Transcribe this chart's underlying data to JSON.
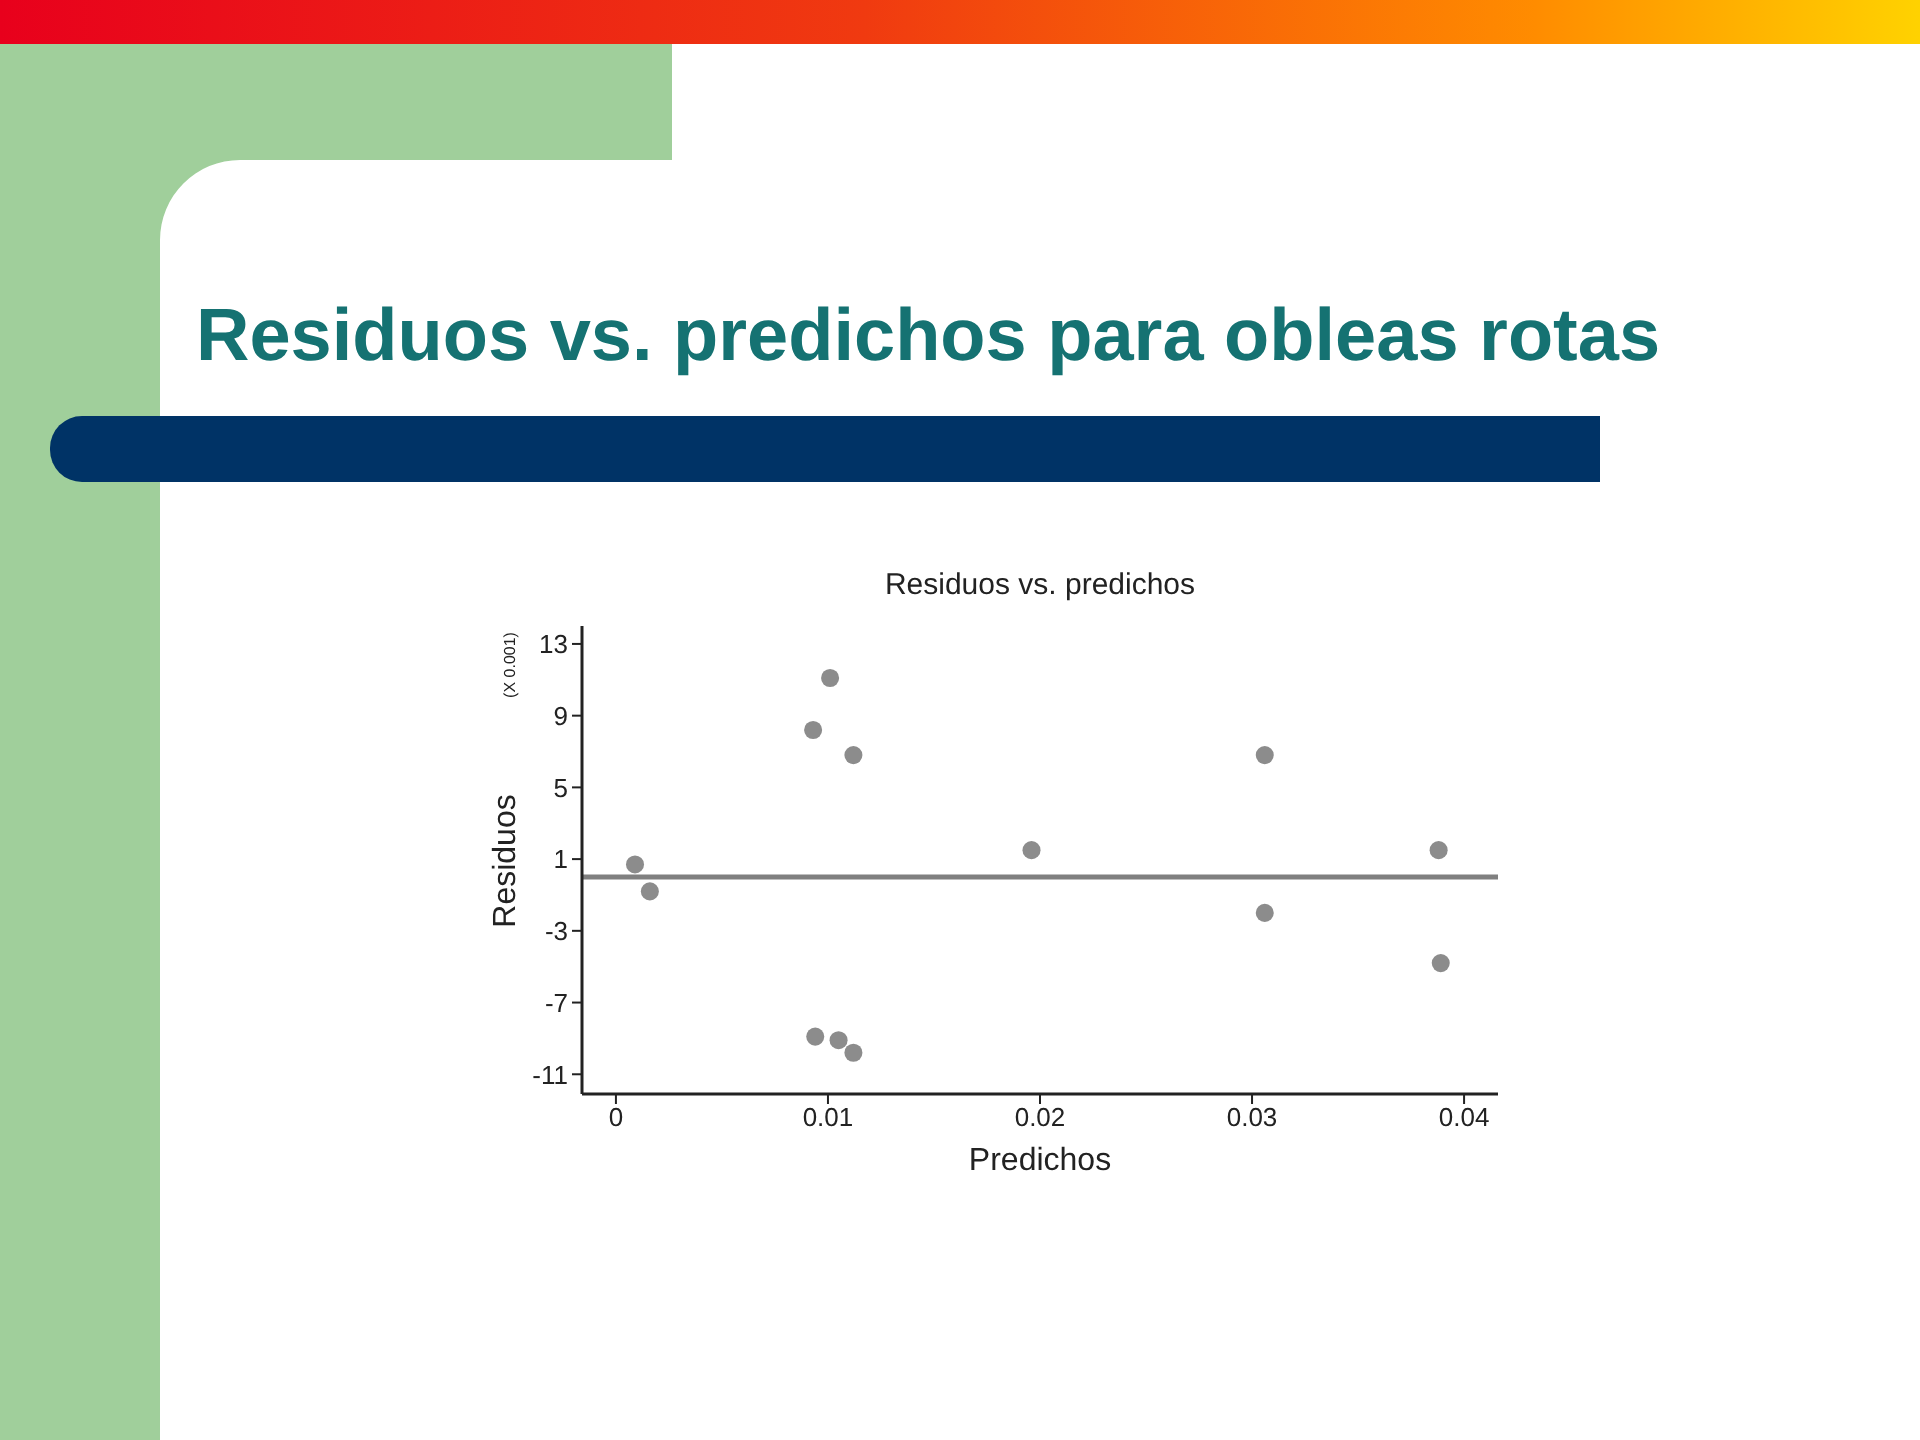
{
  "chart_data": {
    "type": "scatter",
    "title": "Residuos vs. predichos para obleas rotas",
    "subtitle": "Residuos vs. predichos",
    "xlabel": "Predichos",
    "ylabel": "Residuos",
    "annotations": [
      "(X 0.001)"
    ],
    "x": [
      0.0009,
      0.0016,
      0.0093,
      0.0101,
      0.0112,
      0.0094,
      0.0105,
      0.0112,
      0.0196,
      0.0306,
      0.0306,
      0.0388,
      0.0389
    ],
    "series": [
      {
        "color": "#8c8c8c",
        "values": [
          0.7,
          -0.8,
          8.2,
          11.1,
          6.8,
          -8.9,
          -9.1,
          -9.8,
          1.5,
          6.8,
          -2.0,
          1.5,
          -4.8
        ]
      }
    ],
    "xlim": [
      -0.0016,
      0.0416
    ],
    "xticks": [
      0,
      0.01,
      0.02,
      0.03,
      0.04
    ],
    "ylim": [
      -12.1,
      14
    ],
    "yticks": [
      -11,
      -7,
      -3,
      1,
      5,
      9,
      13
    ],
    "ref_lines": [
      {
        "axis": "y",
        "value": 0,
        "color": "#808080"
      }
    ],
    "grid": false,
    "legend": false,
    "marker": "circle"
  }
}
